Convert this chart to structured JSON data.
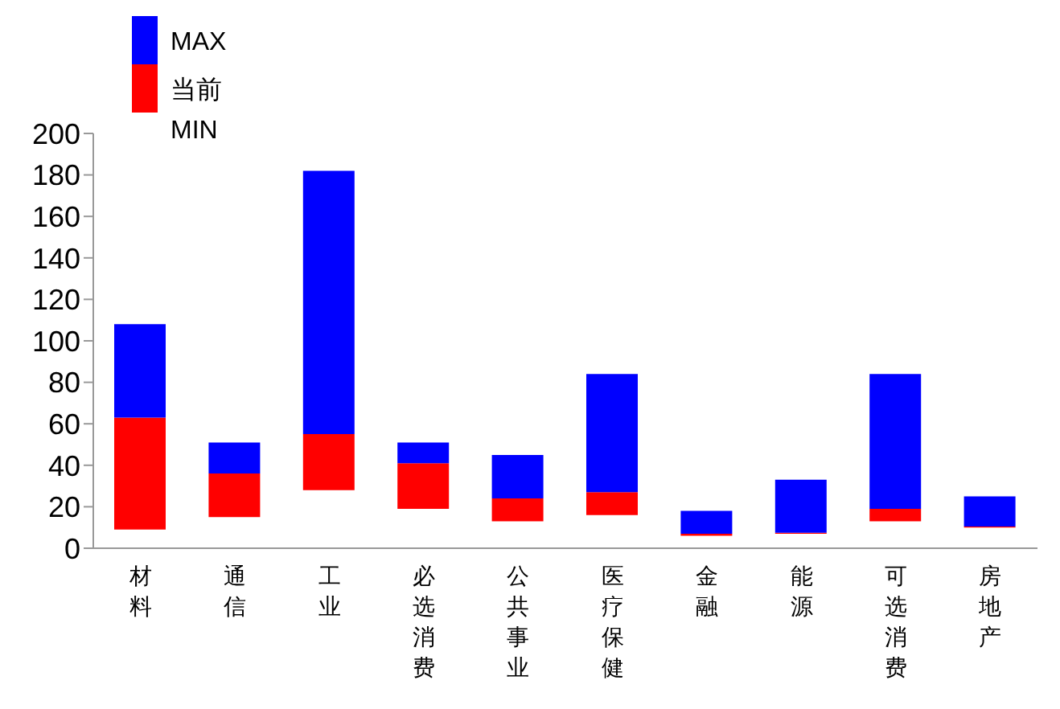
{
  "chart_data": {
    "type": "bar",
    "categories": [
      "材料",
      "通信",
      "工业",
      "必选消费",
      "公共事业",
      "医疗保健",
      "金融",
      "能源",
      "可选消费",
      "房地产"
    ],
    "series": [
      {
        "name": "当前",
        "color": "#ff0000",
        "base": [
          9,
          15,
          28,
          19,
          13,
          16,
          6,
          7,
          13,
          10
        ],
        "values": [
          54,
          21,
          27,
          22,
          11,
          11,
          1,
          0.5,
          6,
          0.5
        ]
      },
      {
        "name": "MAX",
        "color": "#0000ff",
        "base": [
          63,
          36,
          55,
          41,
          24,
          27,
          7,
          7.5,
          19,
          10.5
        ],
        "values": [
          45,
          15,
          127,
          10,
          21,
          57,
          11,
          25.5,
          65,
          14.5
        ]
      }
    ],
    "annotations": [
      "MIN"
    ],
    "ylim": [
      0,
      200
    ],
    "yticks": [
      0,
      20,
      40,
      60,
      80,
      100,
      120,
      140,
      160,
      180,
      200
    ],
    "legend": "top left"
  }
}
